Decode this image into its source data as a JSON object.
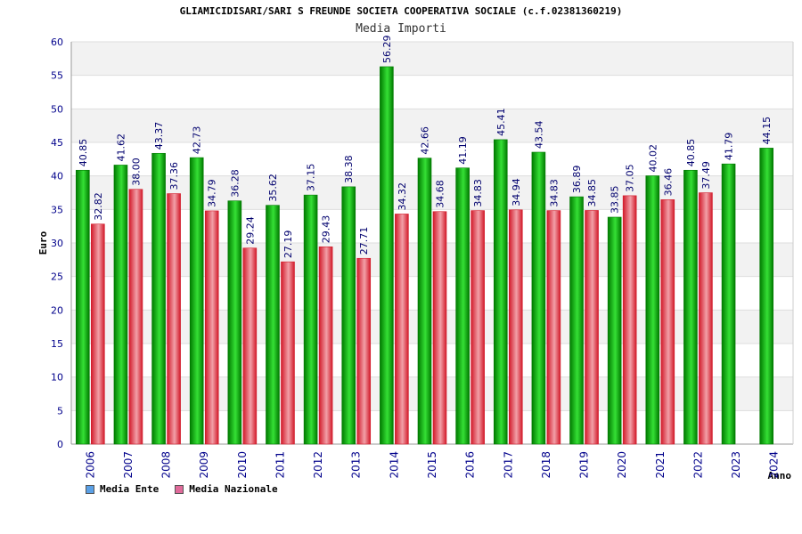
{
  "header": {
    "title": "GLIAMICIDISARI/SARI S FREUNDE SOCIETA COOPERATIVA SOCIALE (c.f.02381360219)",
    "subtitle": "Media Importi"
  },
  "legend": {
    "ente_label": "Media Ente",
    "nazionale_label": "Media Nazionale",
    "ente_swatch": "#5aa0e6",
    "nazionale_swatch": "#e06a9a"
  },
  "colors": {
    "ente_dark": "#007a00",
    "ente_light": "#35e035",
    "naz_dark": "#d21a2a",
    "naz_light": "#f2a0a8",
    "axis_label": "#00008b",
    "band": "#f2f2f2",
    "grid": "#dddddd"
  },
  "chart_data": {
    "type": "bar",
    "title": "GLIAMICIDISARI/SARI S FREUNDE SOCIETA COOPERATIVA SOCIALE (c.f.02381360219)",
    "subtitle": "Media Importi",
    "xlabel": "Anno",
    "ylabel": "Euro",
    "ylim": [
      0,
      60
    ],
    "yticks": [
      0,
      5,
      10,
      15,
      20,
      25,
      30,
      35,
      40,
      45,
      50,
      55,
      60
    ],
    "categories": [
      "2006",
      "2007",
      "2008",
      "2009",
      "2010",
      "2011",
      "2012",
      "2013",
      "2014",
      "2015",
      "2016",
      "2017",
      "2018",
      "2019",
      "2020",
      "2021",
      "2022",
      "2023",
      "2024"
    ],
    "series": [
      {
        "name": "Media Ente",
        "values": [
          40.85,
          41.62,
          43.37,
          42.73,
          36.28,
          35.62,
          37.15,
          38.38,
          56.29,
          42.66,
          41.19,
          45.41,
          43.54,
          36.89,
          33.85,
          40.02,
          40.85,
          41.79,
          44.15
        ],
        "labels": [
          "40.85",
          "41.62",
          "43.37",
          "42.73",
          "36.28",
          "35.62",
          "37.15",
          "38.38",
          "56.29",
          "42.66",
          "41.19",
          "45.41",
          "43.54",
          "36.89",
          "33.85",
          "40.02",
          "40.85",
          "41.79",
          "44.15"
        ]
      },
      {
        "name": "Media Nazionale",
        "values": [
          32.82,
          38.0,
          37.36,
          34.79,
          29.24,
          27.19,
          29.43,
          27.71,
          34.32,
          34.68,
          34.83,
          34.94,
          34.83,
          34.85,
          37.05,
          36.46,
          37.49,
          null,
          null
        ],
        "labels": [
          "32.82",
          "38.00",
          "37.36",
          "34.79",
          "29.24",
          "27.19",
          "29.43",
          "27.71",
          "34.32",
          "34.68",
          "34.83",
          "34.94",
          "34.83",
          "34.85",
          "37.05",
          "36.46",
          "37.49",
          null,
          null
        ]
      }
    ],
    "grid": true,
    "legend_position": "bottom-left"
  }
}
